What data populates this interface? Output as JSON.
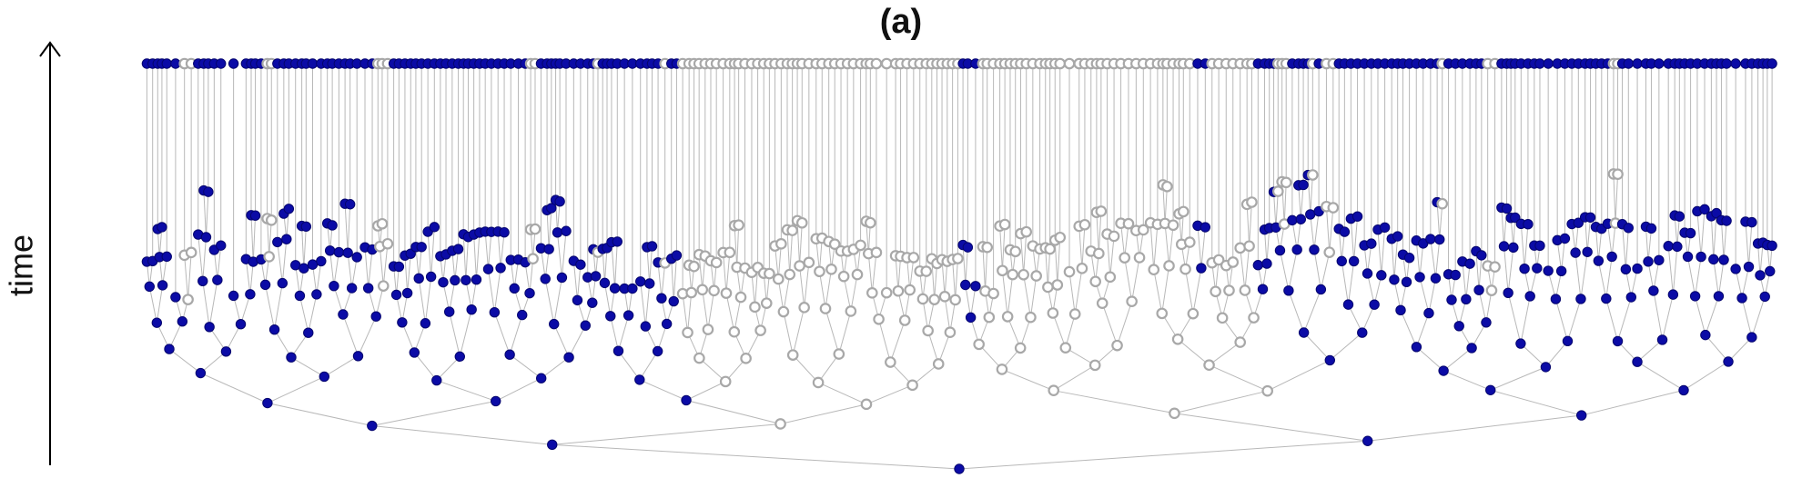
{
  "title": "(a)",
  "axis_label": "time"
}
